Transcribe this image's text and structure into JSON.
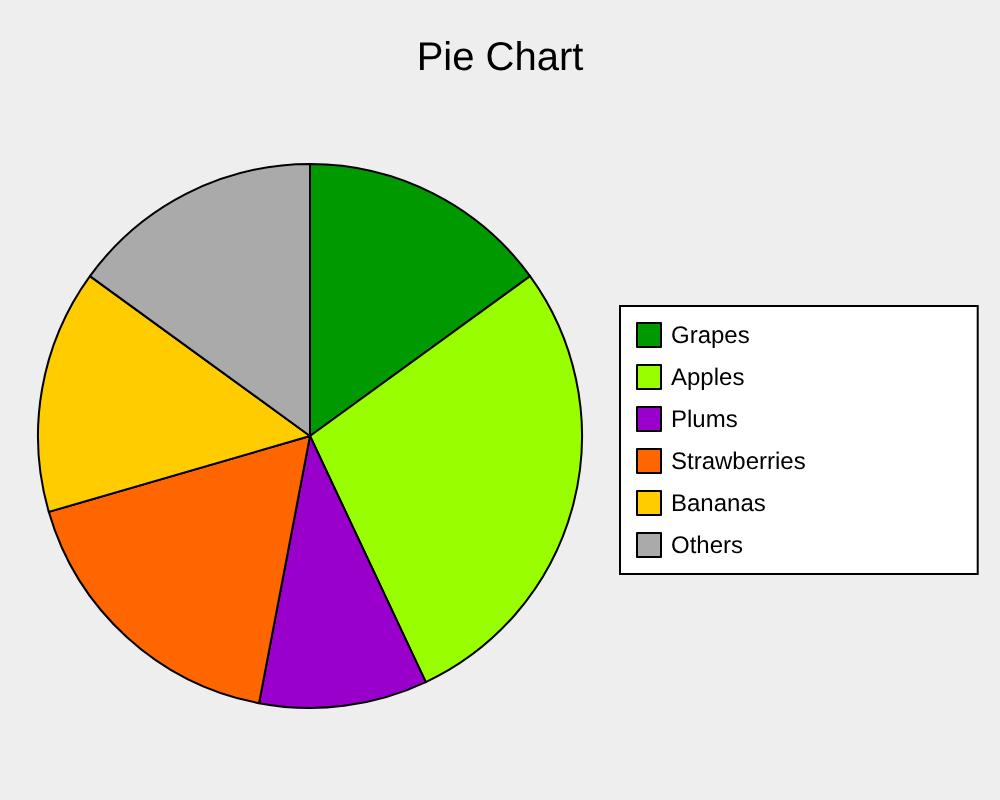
{
  "chart_data": {
    "type": "pie",
    "title": "Pie Chart",
    "categories": [
      "Grapes",
      "Apples",
      "Plums",
      "Strawberries",
      "Bananas",
      "Others"
    ],
    "values": [
      15,
      28,
      10,
      17.5,
      14.5,
      15
    ],
    "colors": [
      "#009900",
      "#99ff00",
      "#9900cc",
      "#ff6600",
      "#ffcc00",
      "#aaaaaa"
    ],
    "legend": "right"
  }
}
